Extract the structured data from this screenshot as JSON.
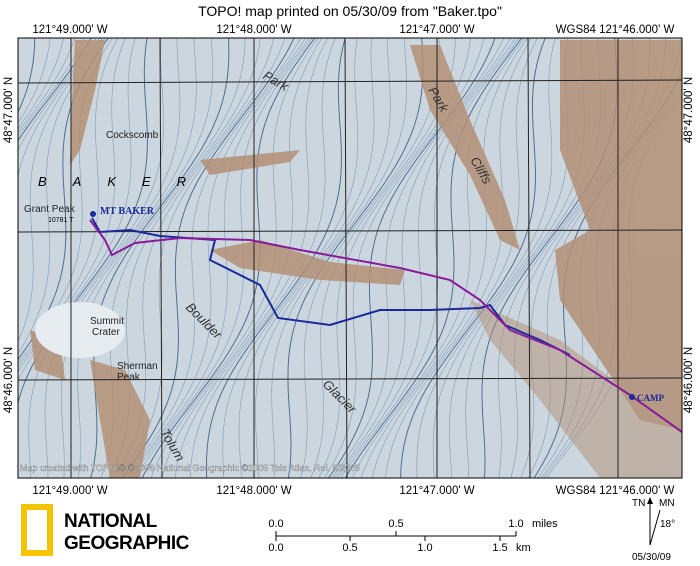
{
  "header": {
    "title": "TOPO! map printed on 05/30/09 from \"Baker.tpo\""
  },
  "coordinates": {
    "top": [
      "121°49.000' W",
      "121°48.000' W",
      "121°47.000' W",
      "WGS84 121°46.000' W"
    ],
    "bottom": [
      "121°49.000' W",
      "121°48.000' W",
      "121°47.000' W",
      "WGS84 121°46.000' W"
    ],
    "left": [
      "48°47.000' N",
      "48°46.000' N"
    ],
    "right": [
      "48°47.000' N",
      "48°46.000' N"
    ]
  },
  "map_labels": {
    "park_1": "Park",
    "park_2": "Park",
    "cliffs": "Cliffs",
    "cockscomb": "Cockscomb",
    "baker": "BAKER",
    "grant_peak": "Grant Peak",
    "elevation": "10781 T",
    "mt_baker": "MT BAKER",
    "summit": "Summit",
    "crater": "Crater",
    "sherman": "Sherman",
    "peak": "Peak",
    "boulder": "Boulder",
    "glacier": "Glacier",
    "tolum": "Tolum",
    "camp": "CAMP"
  },
  "copyright": "Map created with TOPO!© ©2006 National Geographic ©2005 Tele Atlas, Rel. 8/2005",
  "scale": {
    "miles": [
      "0.0",
      "0.5",
      "1.0"
    ],
    "miles_unit": "miles",
    "km": [
      "0.0",
      "0.5",
      "1.0",
      "1.5"
    ],
    "km_unit": "km"
  },
  "logo": [
    "NATIONAL",
    "GEOGRAPHIC"
  ],
  "north": {
    "tn": "TN",
    "mn": "MN",
    "declination": "18°",
    "date": "05/30/09"
  }
}
